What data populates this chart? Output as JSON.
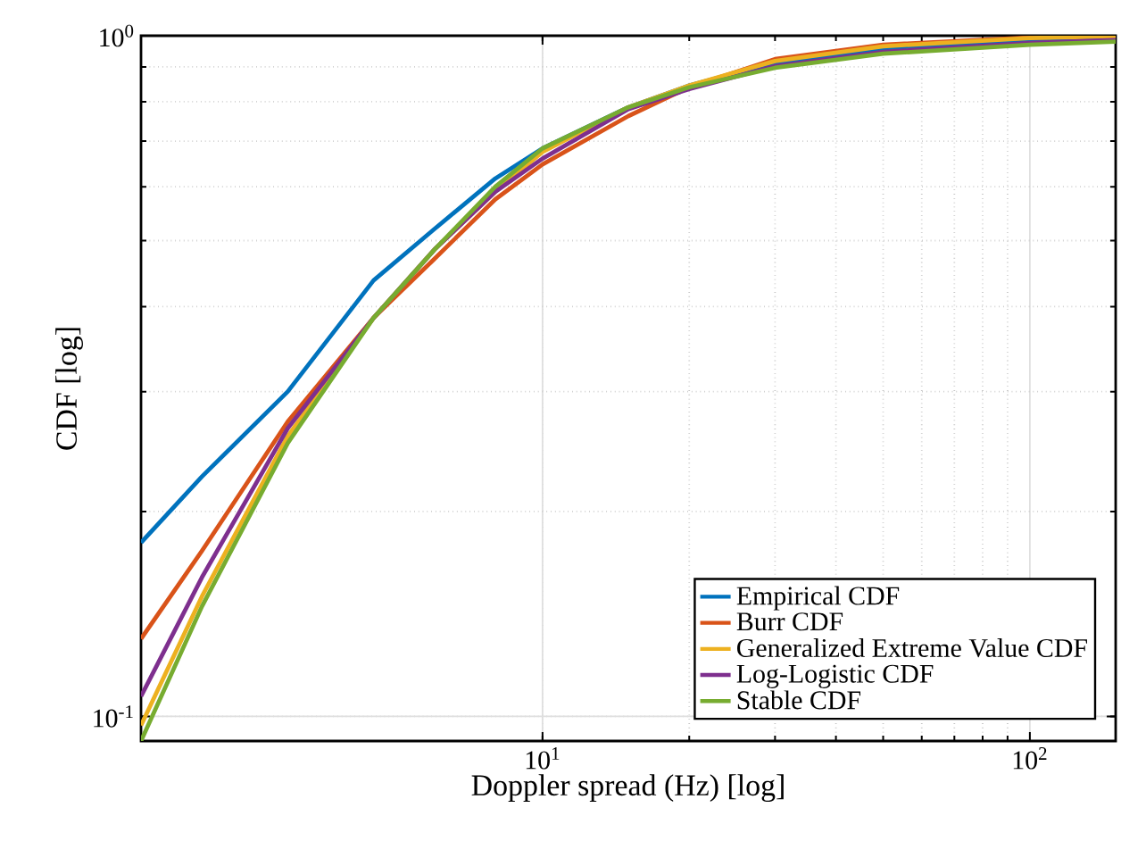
{
  "chart_data": {
    "type": "line",
    "xlabel": "Doppler spread (Hz) [log]",
    "ylabel": "CDF [log]",
    "x": [
      1.5,
      2,
      3,
      4.5,
      6,
      8,
      10,
      15,
      20,
      30,
      50,
      100,
      150
    ],
    "series": [
      {
        "name": "Empirical CDF",
        "color": "#0072bd",
        "values": [
          0.18,
          0.225,
          0.3,
          0.437,
          0.52,
          0.617,
          0.683,
          0.785,
          0.845,
          0.913,
          0.958,
          0.988,
          0.995
        ]
      },
      {
        "name": "Burr CDF",
        "color": "#d95319",
        "values": [
          0.13,
          0.175,
          0.271,
          0.385,
          0.47,
          0.575,
          0.647,
          0.762,
          0.84,
          0.924,
          0.97,
          0.994,
          0.999
        ]
      },
      {
        "name": "Generalized Extreme Value CDF",
        "color": "#edb120",
        "values": [
          0.097,
          0.15,
          0.258,
          0.385,
          0.485,
          0.59,
          0.675,
          0.785,
          0.845,
          0.918,
          0.965,
          0.992,
          0.998
        ]
      },
      {
        "name": "Log-Logistic CDF",
        "color": "#7e2f8e",
        "values": [
          0.107,
          0.16,
          0.265,
          0.385,
          0.485,
          0.59,
          0.66,
          0.78,
          0.835,
          0.902,
          0.947,
          0.976,
          0.985
        ]
      },
      {
        "name": "Stable CDF",
        "color": "#77ac30",
        "values": [
          0.092,
          0.145,
          0.252,
          0.385,
          0.485,
          0.6,
          0.683,
          0.785,
          0.84,
          0.897,
          0.941,
          0.97,
          0.98
        ]
      }
    ],
    "log": "xy",
    "xlim": [
      1.5,
      150
    ],
    "ylim": [
      0.092,
      1
    ],
    "xticks": [
      {
        "value": 10,
        "label": "10$^{1}$"
      },
      {
        "value": 100,
        "label": "10$^{2}$"
      }
    ],
    "yticks": [
      {
        "value": 0.1,
        "label": "10$^{-1}$"
      },
      {
        "value": 1,
        "label": "10$^{0}$"
      }
    ],
    "grid": true,
    "legend": "bottom right",
    "line_style": "solid"
  }
}
